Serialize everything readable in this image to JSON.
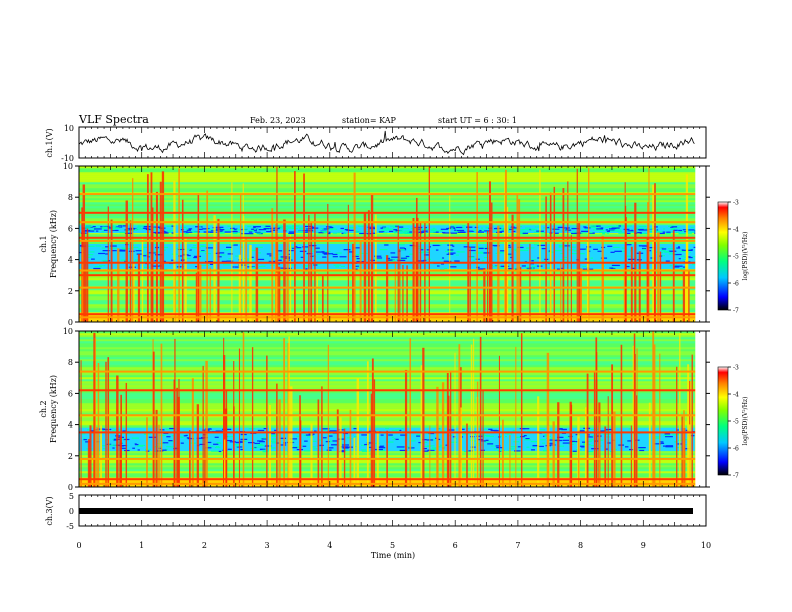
{
  "header": {
    "title": "VLF Spectra",
    "date": "Feb. 23, 2023",
    "station": "station= KAP",
    "start": "start  UT =  6 : 30: 1"
  },
  "colors": {
    "background": "#ffffff",
    "axes": "#000000",
    "colormap": [
      "#000000",
      "#0000ff",
      "#00c8ff",
      "#00ff80",
      "#80ff00",
      "#ffff00",
      "#ff8000",
      "#ff0000",
      "#ffffff"
    ]
  },
  "chart_data": [
    {
      "type": "line",
      "ylabel": "ch.1(V)",
      "ylim": [
        -10,
        10
      ],
      "yticks": [
        "10",
        "-10"
      ],
      "xlim": [
        0,
        10
      ],
      "series": [
        {
          "values_description_hidden": true,
          "shape": "noisy trace around -1 V, amplitude about 4 V"
        }
      ]
    },
    {
      "type": "heatmap",
      "ylabel_line1": "ch.1",
      "ylabel_line2": "Frequency (kHz)",
      "ylim": [
        0,
        10
      ],
      "yticks": [
        "0",
        "2",
        "4",
        "6",
        "8",
        "10"
      ],
      "xlim": [
        0,
        10
      ],
      "colorbar": {
        "label": "log(PSD)(V²/Hz)",
        "ticks": [
          "-3",
          "-4",
          "-5",
          "-6",
          "-7"
        ],
        "range": [
          -7,
          -3
        ]
      },
      "strong_lines_khz": [
        0.3,
        0.5,
        2.2,
        3.0,
        3.3,
        3.8,
        5.2,
        5.4,
        6.4,
        7.0,
        8.2
      ],
      "low_power_bands_khz": [
        [
          3.4,
          5.0
        ],
        [
          5.7,
          6.2
        ]
      ]
    },
    {
      "type": "heatmap",
      "ylabel_line1": "ch.2",
      "ylabel_line2": "Frequency (kHz)",
      "ylim": [
        0,
        10
      ],
      "yticks": [
        "0",
        "2",
        "4",
        "6",
        "8",
        "10"
      ],
      "xlim": [
        0,
        10
      ],
      "colorbar": {
        "label": "log(PSD)(V²/Hz)",
        "ticks": [
          "-3",
          "-4",
          "-5",
          "-6",
          "-7"
        ],
        "range": [
          -7,
          -3
        ]
      },
      "strong_lines_khz": [
        0.2,
        0.5,
        1.8,
        3.5,
        4.6,
        6.2,
        7.4
      ],
      "low_power_bands_khz": [
        [
          2.3,
          3.8
        ]
      ]
    },
    {
      "type": "line",
      "ylabel": "ch.3(V)",
      "ylim": [
        -5,
        5
      ],
      "yticks": [
        "5",
        "0",
        "-5"
      ],
      "xlim": [
        0,
        10
      ],
      "series": [
        {
          "shape": "flat saturated band near -1 V"
        }
      ]
    }
  ],
  "xaxis": {
    "label": "Time  (min)",
    "ticks": [
      "0",
      "1",
      "2",
      "3",
      "4",
      "5",
      "6",
      "7",
      "8",
      "9",
      "10"
    ],
    "data_end_min": 9.83
  }
}
